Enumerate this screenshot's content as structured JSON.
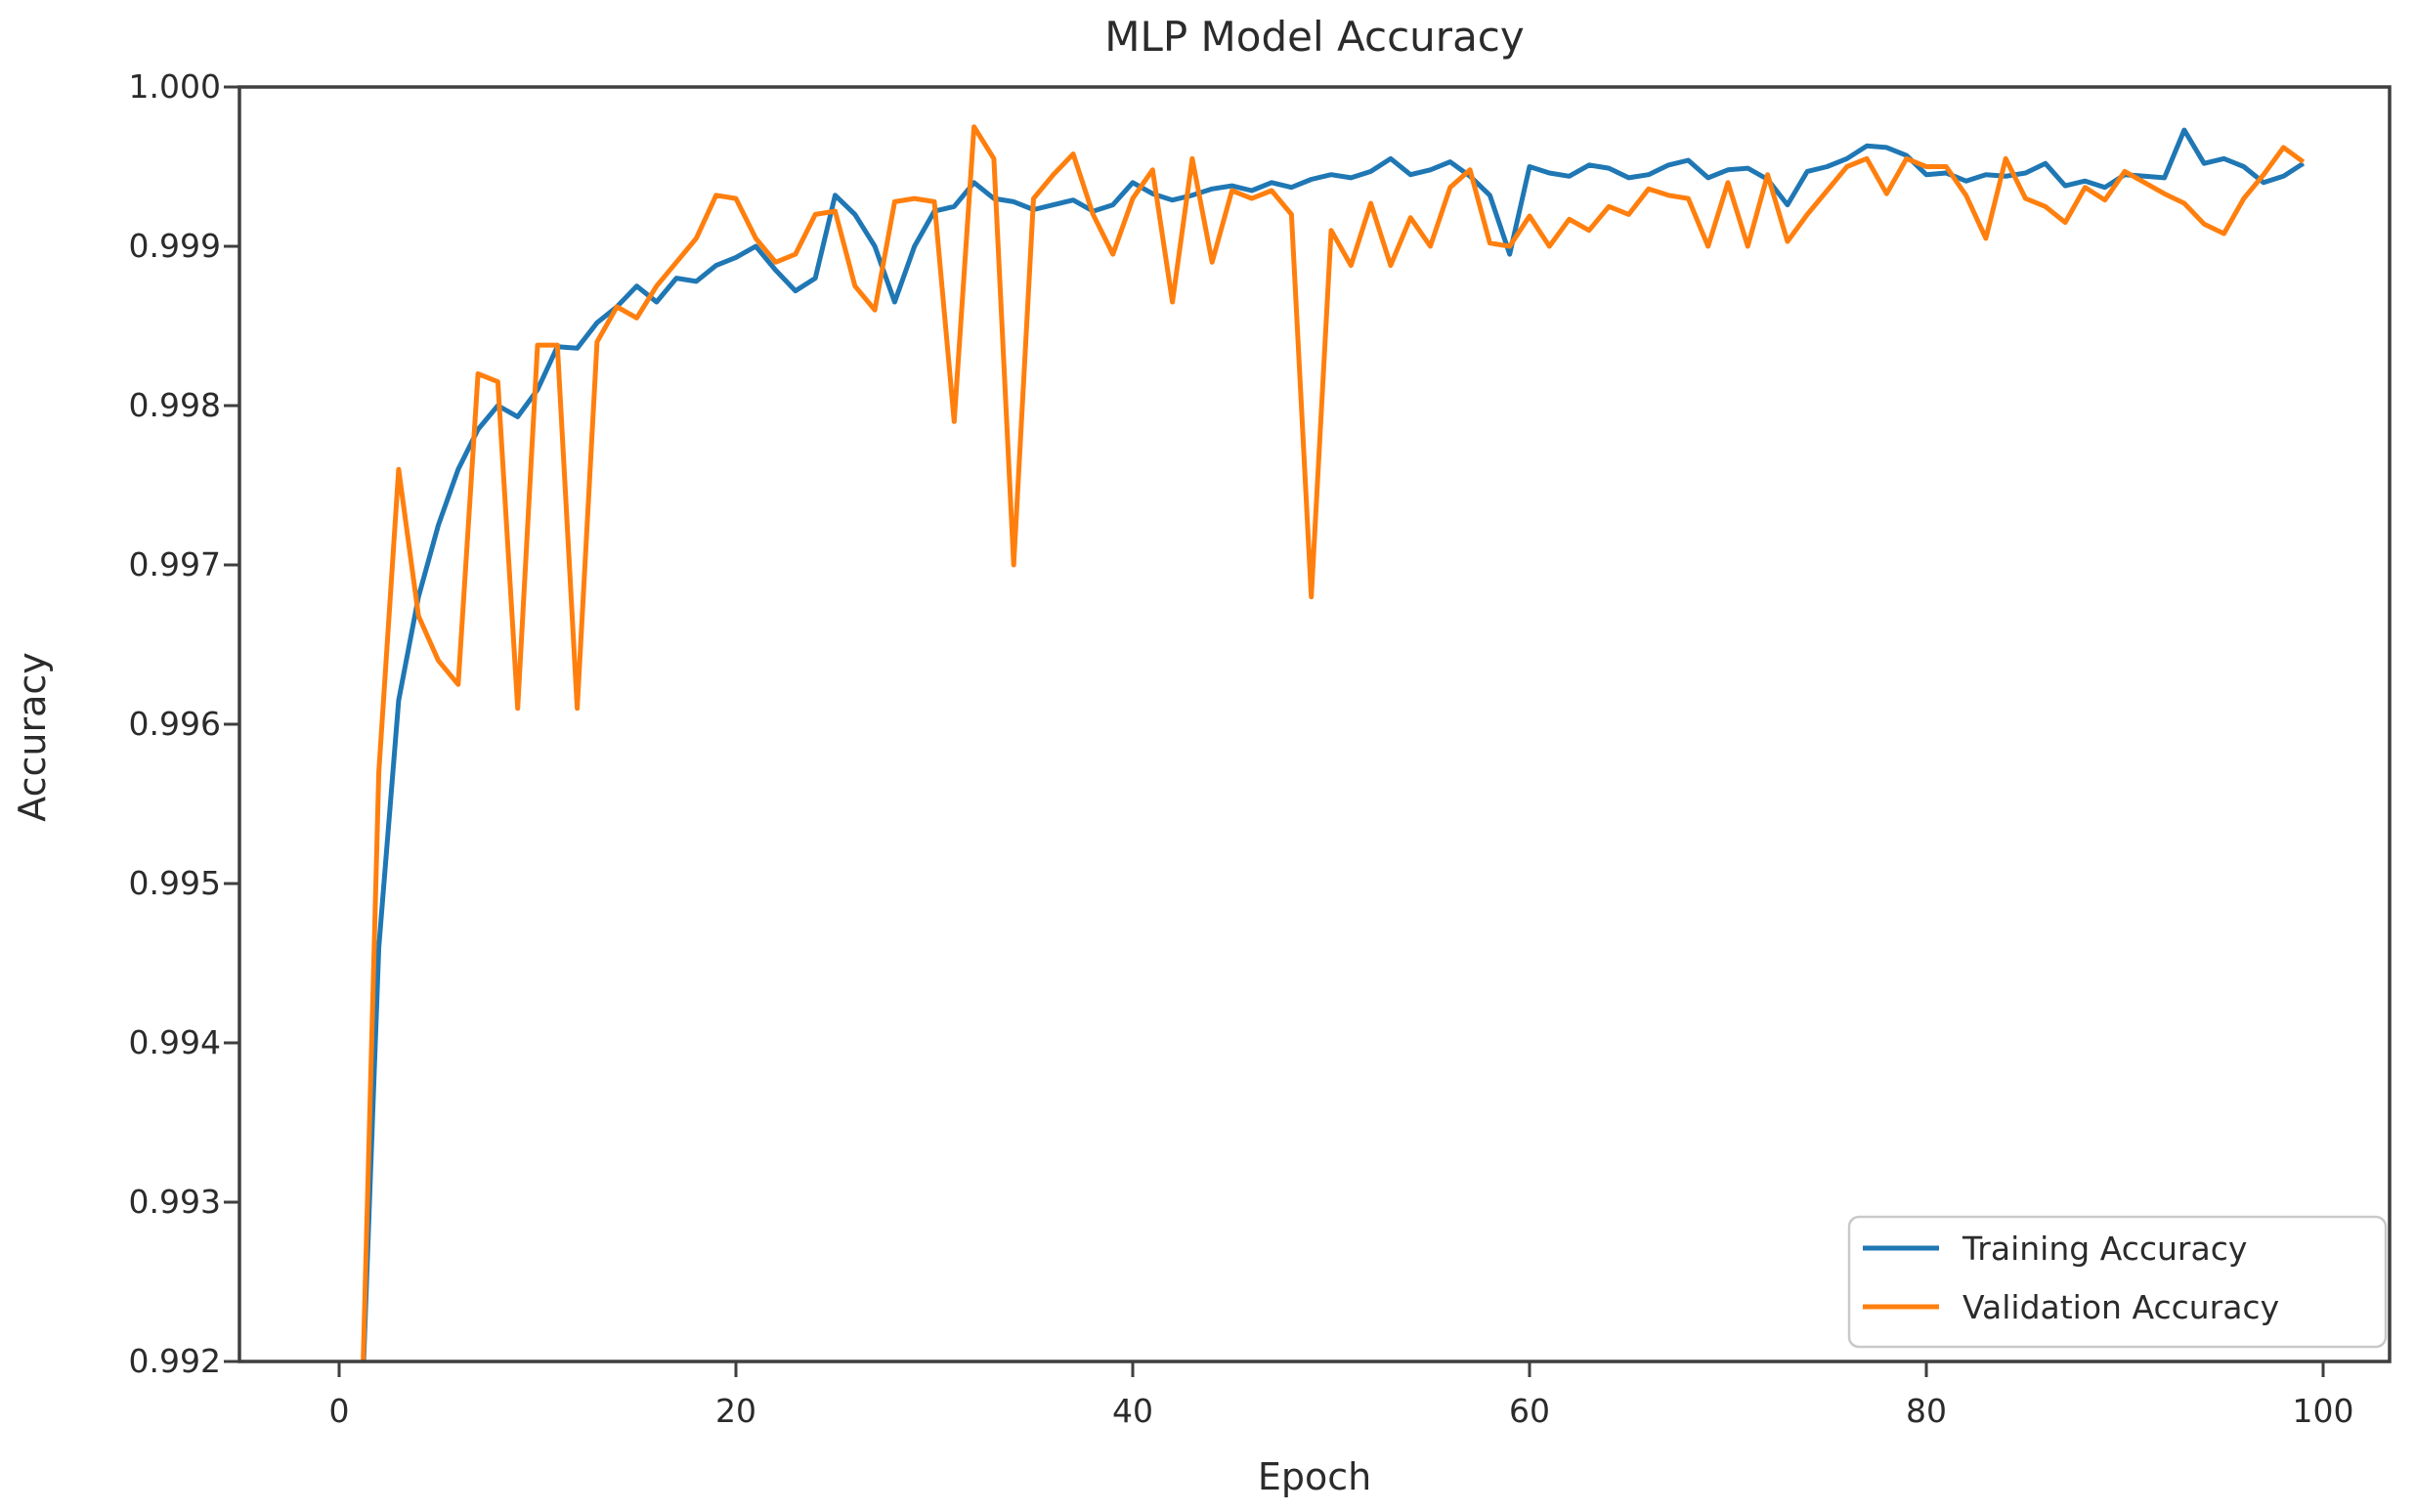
{
  "figure": {
    "title": "MLP Model Accuracy",
    "xlabel": "Epoch",
    "ylabel": "Accuracy"
  },
  "style_colors": {
    "spine": "#3f3f3f",
    "tick": "#3f3f3f",
    "text": "#2b2b2b",
    "legend_border": "#c9c9c9",
    "background": "#ffffff",
    "training_blue": "#1f77b4",
    "validation_orange": "#ff7f0e"
  },
  "chart_data": {
    "type": "line",
    "title": "MLP Model Accuracy",
    "xlabel": "Epoch",
    "ylabel": "Accuracy",
    "xlim": [
      -5,
      103.4
    ],
    "ylim": [
      0.992,
      1.0
    ],
    "xticks": [
      0,
      20,
      40,
      60,
      80,
      100
    ],
    "yticks": [
      1.0,
      0.999,
      0.998,
      0.997,
      0.996,
      0.995,
      0.994,
      0.993,
      0.992
    ],
    "ytick_labels": [
      "1.000",
      "0.999",
      "0.998",
      "0.997",
      "0.996",
      "0.995",
      "0.994",
      "0.993",
      "0.992"
    ],
    "grid": false,
    "legend_position": "lower right",
    "x": [
      1,
      2,
      3,
      4,
      5,
      6,
      7,
      8,
      9,
      10,
      11,
      12,
      13,
      14,
      15,
      16,
      17,
      18,
      19,
      20,
      21,
      22,
      23,
      24,
      25,
      26,
      27,
      28,
      29,
      30,
      31,
      32,
      33,
      34,
      35,
      36,
      37,
      38,
      39,
      40,
      41,
      42,
      43,
      44,
      45,
      46,
      47,
      48,
      49,
      50,
      51,
      52,
      53,
      54,
      55,
      56,
      57,
      58,
      59,
      60,
      61,
      62,
      63,
      64,
      65,
      66,
      67,
      68,
      69,
      70,
      71,
      72,
      73,
      74,
      75,
      76,
      77,
      78,
      79,
      80,
      81,
      82,
      83,
      84,
      85,
      86,
      87,
      88,
      89,
      90,
      91,
      92,
      93,
      94,
      95,
      96,
      97,
      98,
      99
    ],
    "series": [
      {
        "name": "Training Accuracy",
        "color": "#1f77b4",
        "values": [
          0.9912,
          0.9946,
          0.99615,
          0.9968,
          0.99725,
          0.9976,
          0.99785,
          0.998,
          0.99793,
          0.9981,
          0.99837,
          0.99836,
          0.99852,
          0.99862,
          0.99875,
          0.99865,
          0.9988,
          0.99878,
          0.99888,
          0.99893,
          0.999,
          0.99885,
          0.99872,
          0.9988,
          0.99932,
          0.9992,
          0.999,
          0.99865,
          0.999,
          0.99922,
          0.99925,
          0.9994,
          0.9993,
          0.99928,
          0.99923,
          0.99926,
          0.99929,
          0.99922,
          0.99926,
          0.9994,
          0.99933,
          0.99929,
          0.99932,
          0.99936,
          0.99938,
          0.99935,
          0.9994,
          0.99937,
          0.99942,
          0.99945,
          0.99943,
          0.99947,
          0.99955,
          0.99945,
          0.99948,
          0.99953,
          0.99944,
          0.99932,
          0.99895,
          0.9995,
          0.99946,
          0.99944,
          0.99951,
          0.99949,
          0.99943,
          0.99945,
          0.99951,
          0.99954,
          0.99943,
          0.99948,
          0.99949,
          0.99942,
          0.99926,
          0.99947,
          0.9995,
          0.99955,
          0.99963,
          0.99962,
          0.99957,
          0.99945,
          0.99946,
          0.99941,
          0.99945,
          0.99944,
          0.99946,
          0.99952,
          0.99938,
          0.99941,
          0.99937,
          0.99945,
          0.99944,
          0.99943,
          0.99973,
          0.99952,
          0.99955,
          0.9995,
          0.9994,
          0.99944,
          0.99952
        ]
      },
      {
        "name": "Validation Accuracy",
        "color": "#ff7f0e",
        "values": [
          0.991,
          0.9957,
          0.9976,
          0.99668,
          0.9964,
          0.99625,
          0.9982,
          0.99815,
          0.9961,
          0.99838,
          0.99838,
          0.9961,
          0.9984,
          0.99862,
          0.99855,
          0.99875,
          0.9989,
          0.99905,
          0.99932,
          0.9993,
          0.99905,
          0.9989,
          0.99895,
          0.9992,
          0.99922,
          0.99875,
          0.9986,
          0.99928,
          0.9993,
          0.99928,
          0.9979,
          0.99975,
          0.99955,
          0.997,
          0.9993,
          0.99945,
          0.99958,
          0.9992,
          0.99895,
          0.9993,
          0.99948,
          0.99865,
          0.99955,
          0.9989,
          0.99935,
          0.9993,
          0.99935,
          0.9992,
          0.9968,
          0.9991,
          0.99888,
          0.99927,
          0.99888,
          0.99918,
          0.999,
          0.99937,
          0.99948,
          0.99902,
          0.999,
          0.99919,
          0.999,
          0.99917,
          0.9991,
          0.99925,
          0.9992,
          0.99936,
          0.99932,
          0.9993,
          0.999,
          0.9994,
          0.999,
          0.99945,
          0.99903,
          0.9992,
          0.99935,
          0.9995,
          0.99955,
          0.99933,
          0.99955,
          0.9995,
          0.9995,
          0.99932,
          0.99905,
          0.99955,
          0.9993,
          0.99925,
          0.99915,
          0.99937,
          0.99929,
          0.99947,
          0.9994,
          0.99933,
          0.99927,
          0.99914,
          0.99908,
          0.9993,
          0.99945,
          0.99962,
          0.99953
        ]
      }
    ]
  },
  "legend": {
    "entries": [
      {
        "label": "Training Accuracy",
        "color": "#1f77b4"
      },
      {
        "label": "Validation Accuracy",
        "color": "#ff7f0e"
      }
    ]
  }
}
